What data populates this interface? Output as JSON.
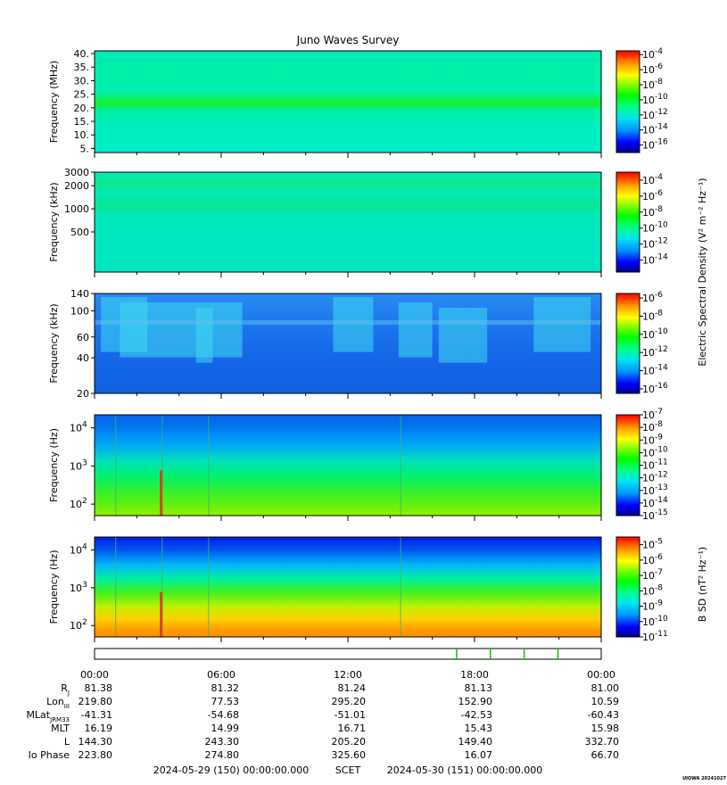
{
  "title": "Juno Waves Survey",
  "footer_mark": "UIOWA 20241027",
  "colors": {
    "spectrum": [
      "#00008b",
      "#0000ff",
      "#0096ff",
      "#00e5ee",
      "#00ff7f",
      "#00ff00",
      "#7cfc00",
      "#ffff00",
      "#ffa500",
      "#ff4500",
      "#ff0000"
    ],
    "event_line": "#3cb371",
    "event_tick": "#00c800"
  },
  "colorbar_titles": {
    "electric": "Electric Spectral Density (V² m⁻² Hz⁻¹)",
    "magnetic": "B SD (nT² Hz⁻¹)"
  },
  "chart_data": [
    {
      "type": "heatmap",
      "name": "hf-panel",
      "ylabel": "Frequency (MHz)",
      "ylim": [
        3.5,
        41
      ],
      "y_scale": "linear",
      "y_ticks": [
        "40.",
        "35.",
        "30.",
        "25.",
        "20.",
        "15.",
        "10.",
        "5."
      ],
      "colorbar_ticks": [
        "10-4",
        "10-6",
        "10-8",
        "10-10",
        "10-12",
        "10-14",
        "10-16"
      ],
      "colorbar_range_exp": [
        -17,
        -3.5
      ],
      "features": "uniform background ~1e-13, enhanced band near 21 MHz"
    },
    {
      "type": "heatmap",
      "name": "mf-panel",
      "ylabel": "Frequency (kHz)",
      "ylim": [
        150,
        3000
      ],
      "y_scale": "log",
      "y_ticks": [
        "3000",
        "2000",
        "1000",
        "500"
      ],
      "colorbar_ticks": [
        "10-4",
        "10-6",
        "10-8",
        "10-10",
        "10-12",
        "10-14"
      ],
      "colorbar_range_exp": [
        -15.5,
        -3
      ],
      "features": "enhanced bands near 2000 kHz and 1000 kHz"
    },
    {
      "type": "heatmap",
      "name": "lf-panel",
      "ylabel": "Frequency (kHz)",
      "ylim": [
        20,
        140
      ],
      "y_scale": "log",
      "y_ticks": [
        "140",
        "100",
        "60",
        "40",
        "20"
      ],
      "colorbar_ticks": [
        "10-6",
        "10-8",
        "10-10",
        "10-12",
        "10-14",
        "10-16"
      ],
      "colorbar_range_exp": [
        -16.5,
        -5.5
      ],
      "features": "bursty emissions 01:00-07:00, 11:30-13:00, 14:30-18:30, 21:00-23:30"
    },
    {
      "type": "heatmap",
      "name": "e-lowfreq-panel",
      "ylabel": "Frequency (Hz)",
      "ylim": [
        50,
        22000
      ],
      "y_scale": "log",
      "y_ticks": [
        "10^4",
        "10^3",
        "10^2"
      ],
      "colorbar_ticks": [
        "10-7",
        "10-8",
        "10-9",
        "10-10",
        "10-11",
        "10-12",
        "10-13",
        "10-14",
        "10-15"
      ],
      "colorbar_range_exp": [
        -15,
        -7
      ],
      "features": "spectrum increases toward low frequency; spike at ~03:10"
    },
    {
      "type": "heatmap",
      "name": "b-panel",
      "ylabel": "Frequency (Hz)",
      "ylim": [
        50,
        22000
      ],
      "y_scale": "log",
      "y_ticks": [
        "10^4",
        "10^3",
        "10^2"
      ],
      "colorbar_ticks": [
        "10-5",
        "10-6",
        "10-7",
        "10-8",
        "10-9",
        "10-10",
        "10-11"
      ],
      "colorbar_range_exp": [
        -11,
        -4.5
      ],
      "features": "smooth gradient from ~1e-10 at 10 kHz to ~1e-5 at 50 Hz"
    }
  ],
  "event_times_hours": [
    17.15,
    18.75,
    20.35,
    21.95
  ],
  "x_axis": {
    "tick_labels": [
      "00:00",
      "06:00",
      "12:00",
      "18:00",
      "00:00"
    ],
    "rows": [
      {
        "label": "R",
        "sub": "J",
        "values": [
          "81.38",
          "81.32",
          "81.24",
          "81.13",
          "81.00"
        ]
      },
      {
        "label": "Lon",
        "sub": "III",
        "values": [
          "219.80",
          "77.53",
          "295.20",
          "152.90",
          "10.59"
        ]
      },
      {
        "label": "MLat",
        "sub": "JRM33",
        "values": [
          "-41.31",
          "-54.68",
          "-51.01",
          "-42.53",
          "-60.43"
        ]
      },
      {
        "label": "MLT",
        "sub": "",
        "values": [
          "16.19",
          "14.99",
          "16.71",
          "15.43",
          "15.98"
        ]
      },
      {
        "label": "L",
        "sub": "",
        "values": [
          "144.30",
          "243.30",
          "205.20",
          "149.40",
          "332.70"
        ]
      },
      {
        "label": "Io Phase",
        "sub": "",
        "values": [
          "223.80",
          "274.80",
          "325.60",
          "16.07",
          "66.70"
        ]
      }
    ],
    "start_label": "2024-05-29 (150) 00:00:00.000",
    "scet_label": "SCET",
    "end_label": "2024-05-30 (151) 00:00:00.000"
  }
}
